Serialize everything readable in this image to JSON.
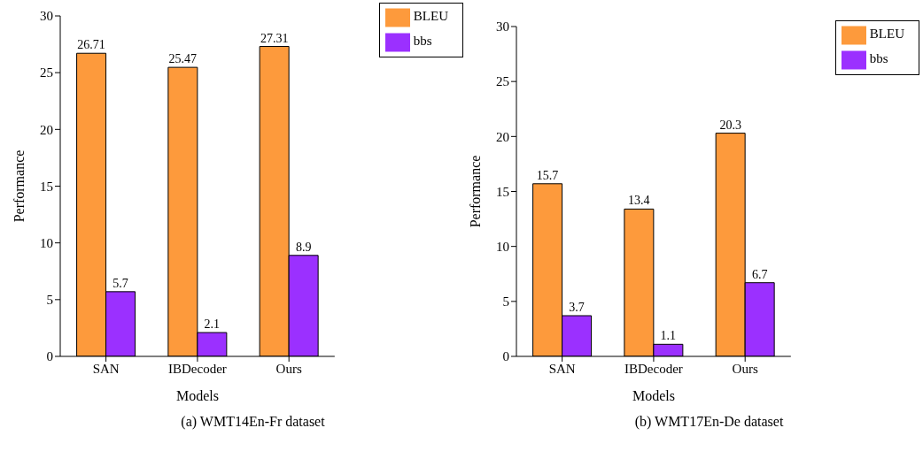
{
  "chart_data": [
    {
      "type": "bar",
      "categories": [
        "SAN",
        "IBDecoder",
        "Ours"
      ],
      "xlabel": "Models",
      "ylabel": "Performance",
      "series": [
        {
          "name": "BLEU",
          "color": "#fd9a3c",
          "values": [
            26.71,
            25.47,
            27.31
          ]
        },
        {
          "name": "bbs",
          "color": "#9b30ff",
          "values": [
            5.7,
            2.1,
            8.9
          ]
        }
      ],
      "ylim": [
        0,
        30
      ],
      "yticks": [
        0,
        5,
        10,
        15,
        20,
        25,
        30
      ],
      "data_labels": true,
      "legend": "top right",
      "grid": false,
      "annotations": [
        "(a) WMT14En-Fr dataset"
      ]
    },
    {
      "type": "bar",
      "categories": [
        "SAN",
        "IBDecoder",
        "Ours"
      ],
      "xlabel": "Models",
      "ylabel": "Performance",
      "series": [
        {
          "name": "BLEU",
          "color": "#fd9a3c",
          "values": [
            15.7,
            13.4,
            20.3
          ]
        },
        {
          "name": "bbs",
          "color": "#9b30ff",
          "values": [
            3.7,
            1.1,
            6.7
          ]
        }
      ],
      "ylim": [
        0,
        30
      ],
      "yticks": [
        0,
        5,
        10,
        15,
        20,
        25,
        30
      ],
      "data_labels": true,
      "legend": "top right",
      "grid": false,
      "annotations": [
        "(b) WMT17En-De dataset"
      ]
    }
  ]
}
